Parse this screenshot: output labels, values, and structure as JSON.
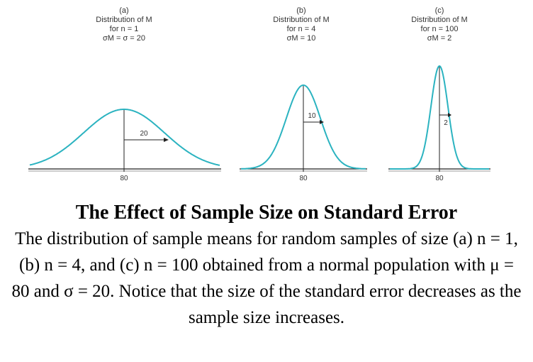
{
  "panels": [
    {
      "letter": "(a)",
      "line1": "Distribution of M",
      "line2": "for n = 1",
      "line3": "σM = σ = 20",
      "tick": "80",
      "se_label": "20"
    },
    {
      "letter": "(b)",
      "line1": "Distribution of M",
      "line2": "for n = 4",
      "line3": "σM = 10",
      "tick": "80",
      "se_label": "10"
    },
    {
      "letter": "(c)",
      "line1": "Distribution of M",
      "line2": "for n = 100",
      "line3": "σM = 2",
      "tick": "80",
      "se_label": "2"
    }
  ],
  "caption": {
    "title": "The Effect of Sample Size on Standard Error",
    "body": "The distribution of sample means for random samples of size (a) n = 1, (b) n = 4, and (c) n = 100 obtained from a normal population with μ = 80 and σ = 20. Notice that the size of the standard error decreases as the sample size increases."
  },
  "colors": {
    "curve": "#2bb3c0",
    "axis": "#222222"
  }
}
